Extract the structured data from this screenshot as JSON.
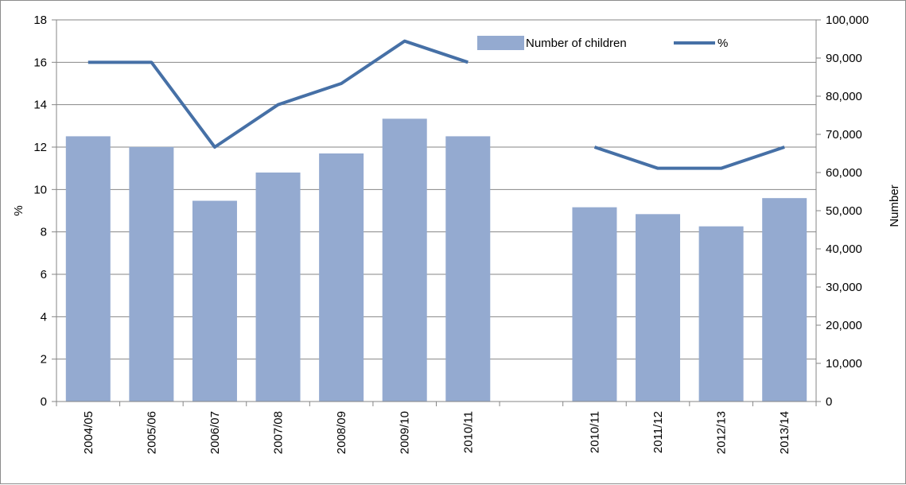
{
  "chart_data": {
    "type": "bar",
    "categories": [
      "2004/05",
      "2005/06",
      "2006/07",
      "2007/08",
      "2008/09",
      "2009/10",
      "2010/11",
      "",
      "2010/11",
      "2011/12",
      "2012/13",
      "2013/14"
    ],
    "series": [
      {
        "name": "Number of children",
        "type": "bar",
        "axis": "right",
        "color": "#94aad0",
        "values": [
          69500,
          66700,
          52600,
          60000,
          65000,
          74100,
          69500,
          null,
          50900,
          49100,
          45900,
          53300
        ]
      },
      {
        "name": "%",
        "type": "line",
        "axis": "left",
        "color": "#4670a6",
        "values": [
          16,
          16,
          12,
          14,
          15,
          17,
          16,
          null,
          12,
          11,
          11,
          12
        ]
      }
    ],
    "y_left": {
      "label": "%",
      "ylim": [
        0,
        18
      ],
      "ticks": [
        "0",
        "2",
        "4",
        "6",
        "8",
        "10",
        "12",
        "14",
        "16",
        "18"
      ]
    },
    "y_right": {
      "label": "Number",
      "ylim": [
        0,
        100000
      ],
      "ticks": [
        "0",
        "10,000",
        "20,000",
        "30,000",
        "40,000",
        "50,000",
        "60,000",
        "70,000",
        "80,000",
        "90,000",
        "100,000"
      ]
    },
    "grid": true,
    "legend": "top-right"
  }
}
